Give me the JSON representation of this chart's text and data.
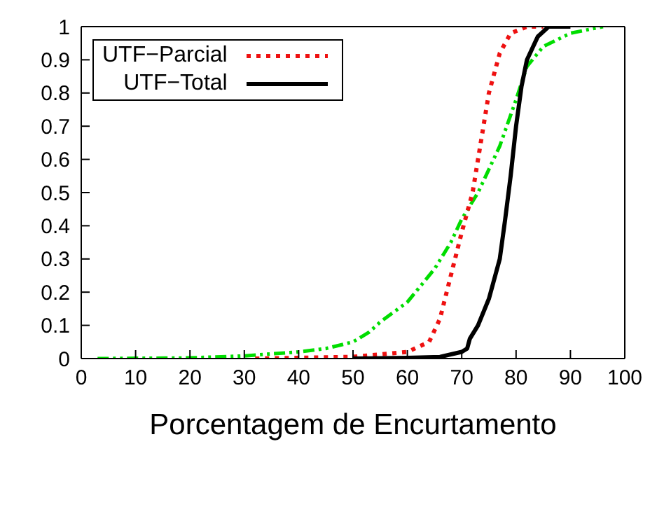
{
  "chart_data": {
    "type": "line",
    "xlabel": "Porcentagem de Encurtamento",
    "xlim": [
      0,
      100
    ],
    "xticks": [
      0,
      10,
      20,
      30,
      40,
      50,
      60,
      70,
      80,
      90,
      100
    ],
    "ylim": [
      0,
      1
    ],
    "yticks": [
      0,
      0.1,
      0.2,
      0.3,
      0.4,
      0.5,
      0.6,
      0.7,
      0.8,
      0.9,
      1
    ],
    "grid": false,
    "legend": "top left",
    "marker": "none",
    "series": [
      {
        "color": "#00dd00",
        "line_style": "dashdot",
        "x": [
          3,
          20,
          30,
          40,
          45,
          50,
          53,
          55,
          60,
          65,
          68,
          70,
          73,
          75,
          77,
          80,
          82,
          85,
          90,
          96
        ],
        "values": [
          0,
          0.002,
          0.008,
          0.02,
          0.03,
          0.05,
          0.08,
          0.11,
          0.17,
          0.27,
          0.35,
          0.42,
          0.5,
          0.57,
          0.64,
          0.78,
          0.88,
          0.94,
          0.98,
          1
        ]
      },
      {
        "name": "UTF−Parcial",
        "color": "#ee1111",
        "line_style": "dotted",
        "x": [
          32,
          50,
          60,
          64,
          66,
          68,
          70,
          72,
          73,
          74,
          75,
          77,
          79,
          82,
          85
        ],
        "values": [
          0,
          0.005,
          0.02,
          0.05,
          0.12,
          0.25,
          0.38,
          0.5,
          0.6,
          0.7,
          0.8,
          0.92,
          0.98,
          1,
          1
        ]
      },
      {
        "name": "UTF−Total",
        "color": "#000000",
        "line_style": "solid",
        "x": [
          50,
          60,
          66,
          70,
          71,
          71.5,
          73,
          75,
          77,
          78,
          79,
          80,
          81,
          82,
          84,
          86,
          90
        ],
        "values": [
          0,
          0.002,
          0.005,
          0.02,
          0.03,
          0.06,
          0.1,
          0.18,
          0.3,
          0.42,
          0.55,
          0.7,
          0.82,
          0.9,
          0.97,
          1,
          1
        ]
      }
    ]
  }
}
